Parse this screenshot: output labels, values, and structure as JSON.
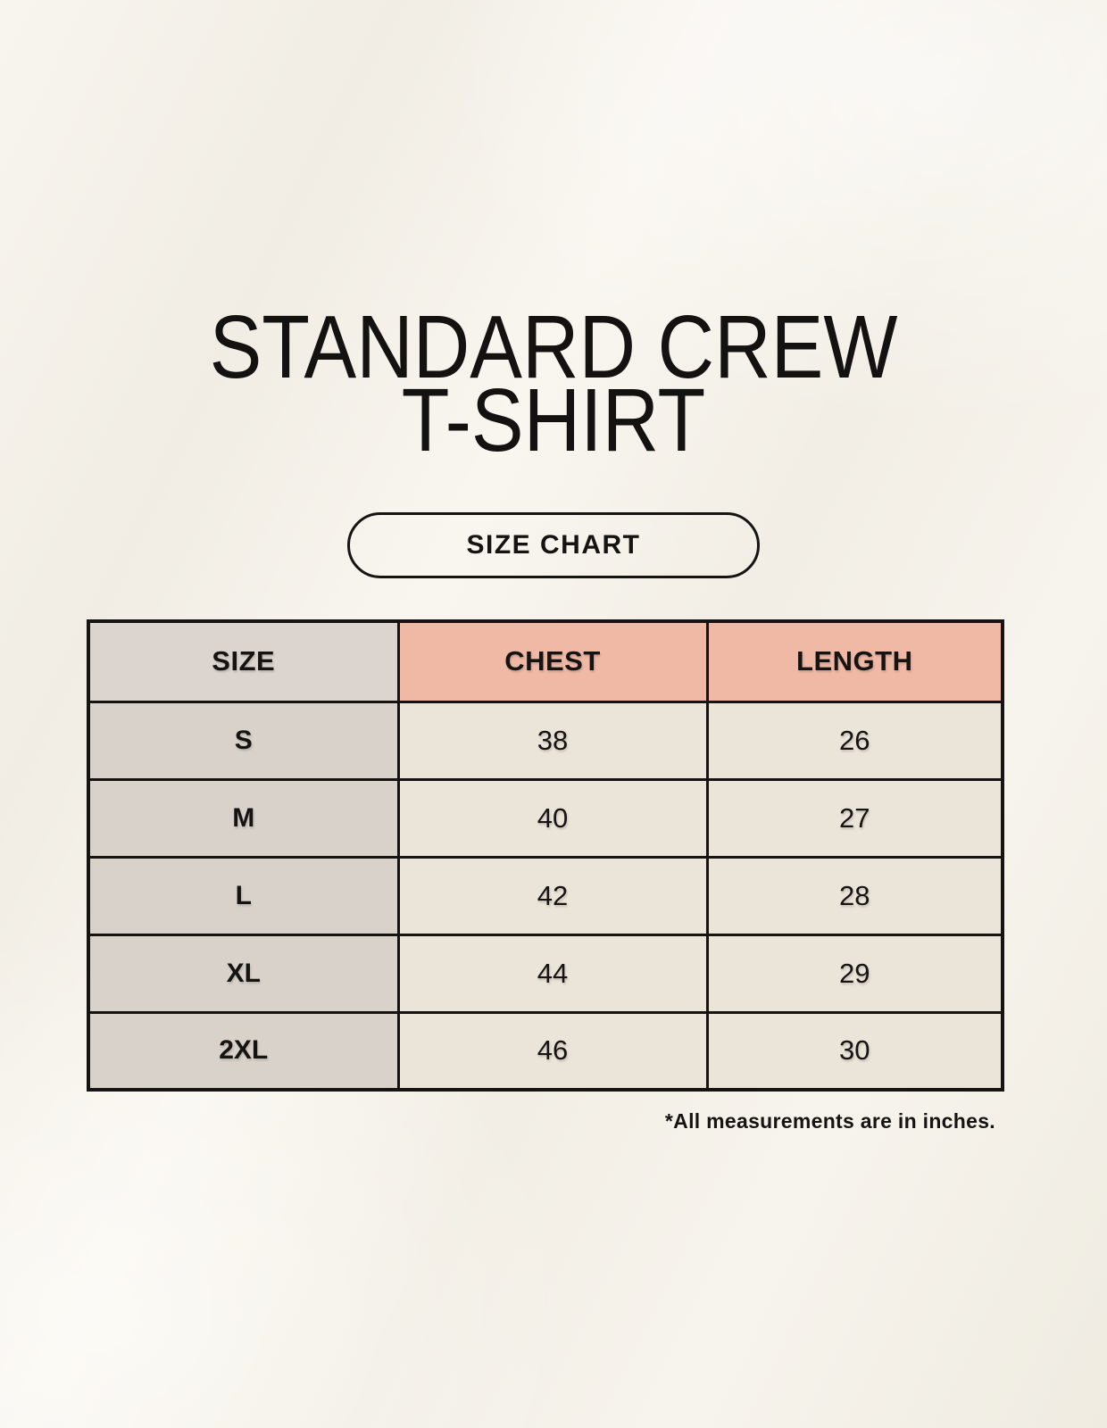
{
  "header": {
    "title_line1": "STANDARD CREW",
    "title_line2": "T-SHIRT",
    "size_chart_button_label": "SIZE CHART"
  },
  "chart_data": {
    "type": "table",
    "title": "STANDARD CREW T-SHIRT",
    "columns": [
      "SIZE",
      "CHEST",
      "LENGTH"
    ],
    "units": "inches",
    "rows": [
      {
        "size": "S",
        "chest": 38,
        "length": 26
      },
      {
        "size": "M",
        "chest": 40,
        "length": 27
      },
      {
        "size": "L",
        "chest": 42,
        "length": 28
      },
      {
        "size": "XL",
        "chest": 44,
        "length": 29
      },
      {
        "size": "2XL",
        "chest": 46,
        "length": 30
      }
    ]
  },
  "footnote": "*All measurements are in inches.",
  "colors": {
    "background": "#f4f1e9",
    "table_header_accent": "#f0b9a6",
    "table_header_neutral": "#dcd5cf",
    "row_label_bg": "#d8d2cb",
    "data_cell_bg": "#eae4d9",
    "border": "#161413",
    "text": "#161413"
  }
}
